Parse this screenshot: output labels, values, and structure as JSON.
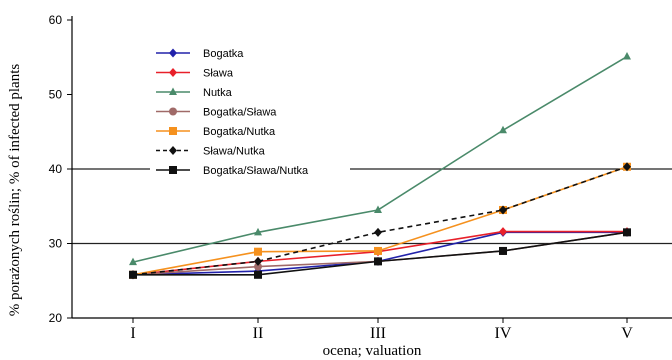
{
  "chart_data": {
    "type": "line",
    "categories": [
      "I",
      "II",
      "III",
      "IV",
      "V"
    ],
    "xlabel": "ocena; valuation",
    "ylabel": "% porażonych roślin; % of infected plants",
    "ylim": [
      20,
      60
    ],
    "yticks": [
      20,
      30,
      40,
      50,
      60
    ],
    "grid": "horizontal lines at 30 and 40",
    "legend": "top-left",
    "series": [
      {
        "name": "Bogatka",
        "color": "#2222aa",
        "dash": "solid",
        "marker": "diamond",
        "values": [
          25.8,
          26.3,
          27.6,
          31.5,
          31.5
        ]
      },
      {
        "name": "Sława",
        "color": "#e8202a",
        "dash": "solid",
        "marker": "diamond",
        "values": [
          25.8,
          27.6,
          28.9,
          31.6,
          31.6
        ]
      },
      {
        "name": "Nutka",
        "color": "#4a8a6a",
        "dash": "solid",
        "marker": "triangle",
        "values": [
          27.5,
          31.5,
          34.5,
          45.2,
          55.1
        ]
      },
      {
        "name": "Bogatka/Sława",
        "color": "#a06a68",
        "dash": "solid",
        "marker": "circle",
        "values": [
          25.8,
          26.9,
          27.6,
          29.0,
          31.5
        ]
      },
      {
        "name": "Bogatka/Nutka",
        "color": "#f5911e",
        "dash": "solid",
        "marker": "square",
        "values": [
          25.8,
          28.9,
          29.0,
          34.5,
          40.3
        ]
      },
      {
        "name": "Sława/Nutka",
        "color": "#111111",
        "dash": "dashed",
        "marker": "diamond",
        "values": [
          25.8,
          27.6,
          31.5,
          34.5,
          40.3
        ]
      },
      {
        "name": "Bogatka/Sława/Nutka",
        "color": "#111111",
        "dash": "solid",
        "marker": "square",
        "values": [
          25.8,
          25.8,
          27.6,
          29.0,
          31.5
        ]
      }
    ]
  }
}
